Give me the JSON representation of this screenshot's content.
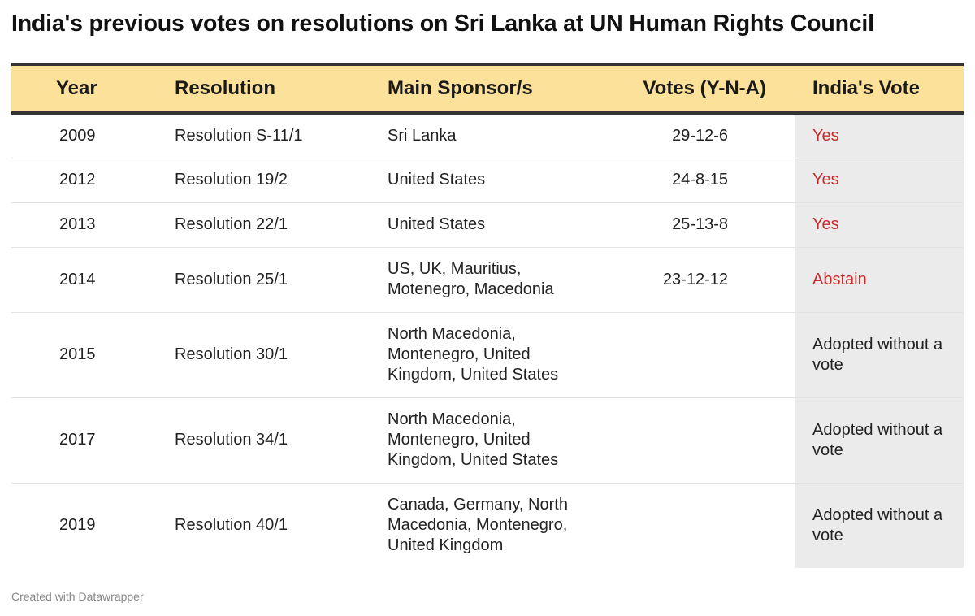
{
  "title": "India's previous votes on resolutions on Sri Lanka at UN Human Rights Council",
  "footer": "Created with Datawrapper",
  "colors": {
    "header_bg": "#fbe19a",
    "highlight_text": "#c82b2b",
    "highlight_column_bg": "#ebebeb",
    "rule": "#333333"
  },
  "chart_data": {
    "type": "table",
    "title": "India's previous votes on resolutions on Sri Lanka at UN Human Rights Council",
    "columns": [
      "Year",
      "Resolution",
      "Main Sponsor/s",
      "Votes (Y-N-A)",
      "India's Vote"
    ],
    "rows": [
      {
        "year": "2009",
        "resolution": "Resolution S-11/1",
        "sponsors": "Sri Lanka",
        "votes": "29-12-6",
        "india_vote": "Yes"
      },
      {
        "year": "2012",
        "resolution": "Resolution 19/2",
        "sponsors": "United States",
        "votes": "24-8-15",
        "india_vote": "Yes"
      },
      {
        "year": "2013",
        "resolution": "Resolution 22/1",
        "sponsors": "United States",
        "votes": "25-13-8",
        "india_vote": "Yes"
      },
      {
        "year": "2014",
        "resolution": "Resolution 25/1",
        "sponsors": "US, UK, Mauritius, Motenegro, Macedonia",
        "votes": "23-12-12",
        "india_vote": "Abstain"
      },
      {
        "year": "2015",
        "resolution": "Resolution 30/1",
        "sponsors": "North Macedonia, Montenegro, United Kingdom, United States",
        "votes": "",
        "india_vote": "Adopted without a vote"
      },
      {
        "year": "2017",
        "resolution": "Resolution 34/1",
        "sponsors": "North Macedonia, Montenegro, United Kingdom, United States",
        "votes": "",
        "india_vote": "Adopted without a vote"
      },
      {
        "year": "2019",
        "resolution": "Resolution 40/1",
        "sponsors": "Canada, Germany, North Macedonia, Montenegro, United Kingdom",
        "votes": "",
        "india_vote": "Adopted without a vote"
      }
    ]
  }
}
